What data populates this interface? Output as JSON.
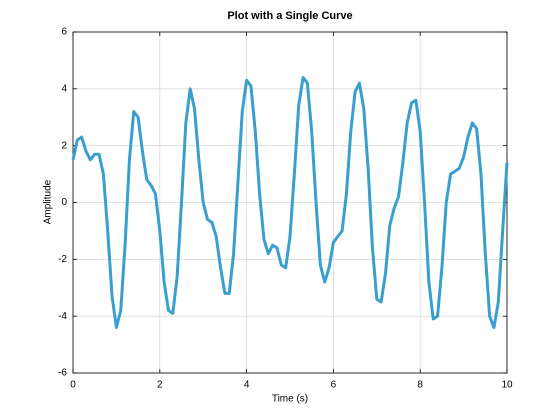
{
  "chart_data": {
    "type": "line",
    "title": "Plot with a Single Curve",
    "xlabel": "Time (s)",
    "ylabel": "Amplitude",
    "xlim": [
      0,
      10
    ],
    "ylim": [
      -6,
      6
    ],
    "xticks": [
      0,
      2,
      4,
      6,
      8,
      10
    ],
    "yticks": [
      -6,
      -4,
      -2,
      0,
      2,
      4,
      6
    ],
    "grid": true,
    "x": [
      0,
      0.1,
      0.2,
      0.3,
      0.4,
      0.5,
      0.6,
      0.7,
      0.8,
      0.9,
      1,
      1.1,
      1.2,
      1.3,
      1.4,
      1.5,
      1.6,
      1.7,
      1.8,
      1.9,
      2,
      2.1,
      2.2,
      2.3,
      2.4,
      2.5,
      2.6,
      2.7,
      2.8,
      2.9,
      3,
      3.1,
      3.2,
      3.3,
      3.4,
      3.5,
      3.6,
      3.7,
      3.8,
      3.9,
      4,
      4.1,
      4.2,
      4.3,
      4.4,
      4.5,
      4.6,
      4.7,
      4.8,
      4.9,
      5,
      5.1,
      5.2,
      5.3,
      5.4,
      5.5,
      5.6,
      5.7,
      5.8,
      5.9,
      6,
      6.1,
      6.2,
      6.3,
      6.4,
      6.5,
      6.6,
      6.7,
      6.8,
      6.9,
      7,
      7.1,
      7.2,
      7.3,
      7.4,
      7.5,
      7.6,
      7.7,
      7.8,
      7.9,
      8,
      8.1,
      8.2,
      8.3,
      8.4,
      8.5,
      8.6,
      8.7,
      8.8,
      8.9,
      9,
      9.1,
      9.2,
      9.3,
      9.4,
      9.5,
      9.6,
      9.7,
      9.8,
      9.9,
      10
    ],
    "series": [
      {
        "color": "#3a9fcf",
        "values": [
          1.5,
          2.2,
          2.3,
          1.8,
          1.5,
          1.7,
          1.7,
          1.0,
          -1.0,
          -3.3,
          -4.4,
          -3.8,
          -1.5,
          1.5,
          3.2,
          3.0,
          1.8,
          0.8,
          0.6,
          0.3,
          -1.0,
          -2.8,
          -3.8,
          -3.9,
          -2.6,
          0.0,
          2.8,
          4.0,
          3.3,
          1.5,
          0.0,
          -0.6,
          -0.7,
          -1.2,
          -2.3,
          -3.2,
          -3.2,
          -1.8,
          0.7,
          3.2,
          4.3,
          4.1,
          2.5,
          0.3,
          -1.3,
          -1.8,
          -1.5,
          -1.6,
          -2.2,
          -2.3,
          -1.2,
          1.0,
          3.4,
          4.4,
          4.2,
          2.5,
          0.0,
          -2.2,
          -2.8,
          -2.3,
          -1.4,
          -1.2,
          -1.0,
          0.3,
          2.5,
          3.9,
          4.2,
          3.3,
          1.2,
          -1.6,
          -3.4,
          -3.5,
          -2.5,
          -0.8,
          -0.2,
          0.2,
          1.4,
          2.8,
          3.5,
          3.6,
          2.5,
          0.0,
          -2.8,
          -4.1,
          -4.0,
          -2.3,
          0.0,
          1.0,
          1.1,
          1.2,
          1.6,
          2.3,
          2.8,
          2.6,
          1.0,
          -1.8,
          -4.0,
          -4.4,
          -3.5,
          -1.0,
          1.4
        ]
      }
    ]
  }
}
